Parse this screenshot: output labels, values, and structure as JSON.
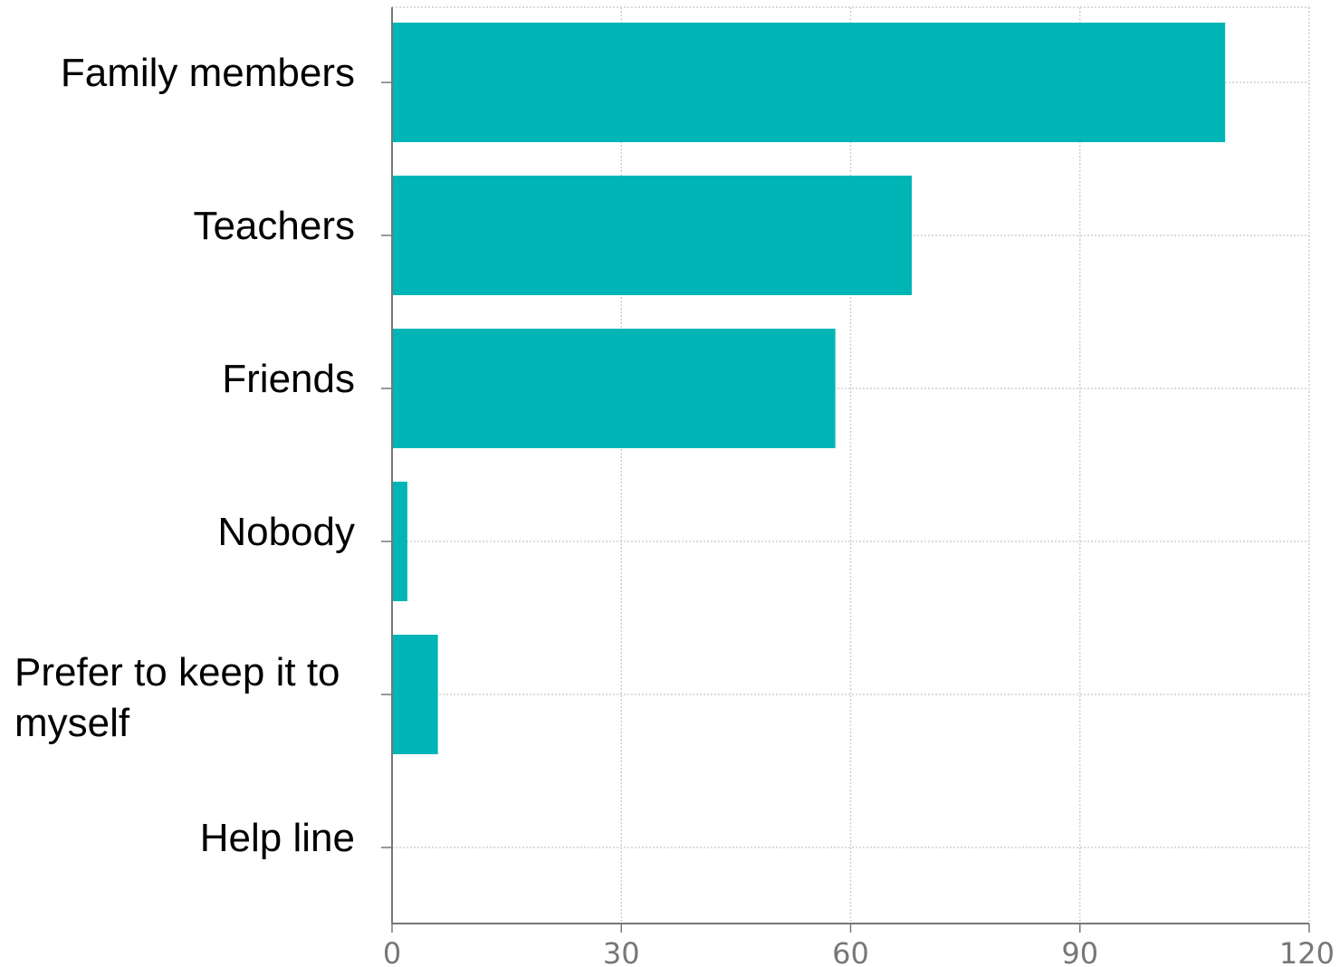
{
  "chart_data": {
    "type": "bar",
    "orientation": "horizontal",
    "categories": [
      "Family members",
      "Teachers",
      "Friends",
      "Nobody",
      "Prefer to keep it to myself",
      "Help line"
    ],
    "category_lines": [
      [
        "Family members"
      ],
      [
        "Teachers"
      ],
      [
        "Friends"
      ],
      [
        "Nobody"
      ],
      [
        "Prefer to keep it to",
        "myself"
      ],
      [
        "Help line"
      ]
    ],
    "values": [
      109,
      68,
      58,
      2,
      6,
      0
    ],
    "xlim": [
      0,
      120
    ],
    "xticks": [
      "0",
      "30",
      "60",
      "90",
      "120"
    ],
    "title": "",
    "xlabel": "",
    "ylabel": "",
    "grid": true,
    "legend": "none",
    "bar_color": "#00b5b5"
  }
}
